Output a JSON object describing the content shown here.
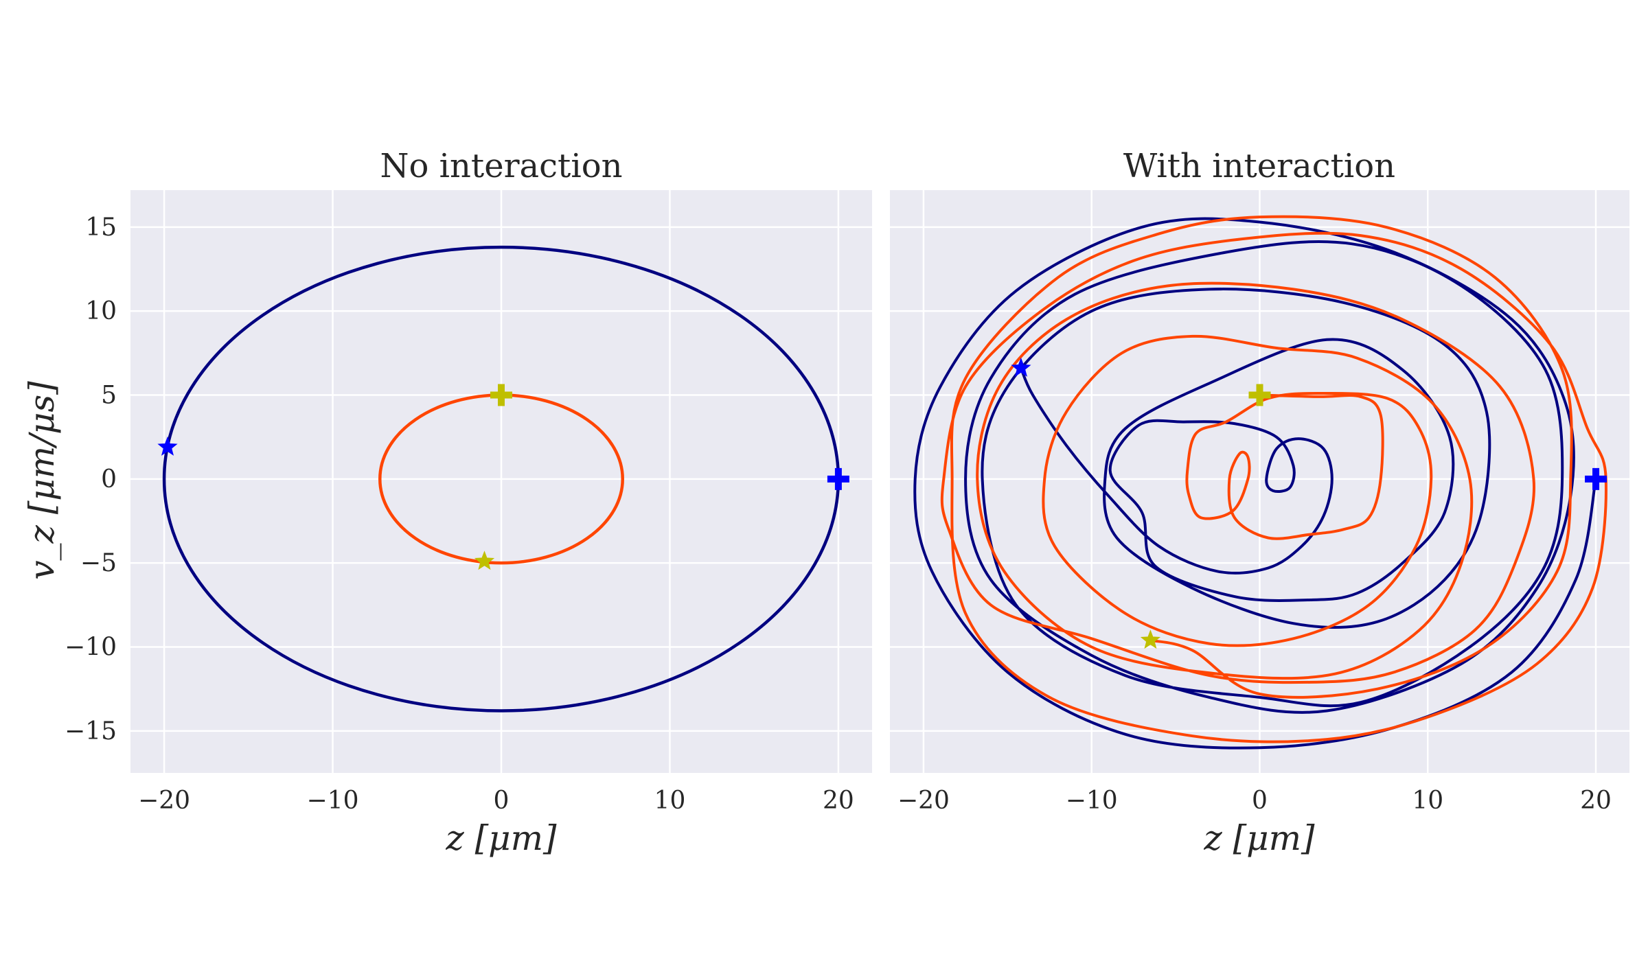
{
  "chart_data": [
    {
      "type": "line",
      "title": "No interaction",
      "xlabel": "z [μm]",
      "ylabel": "v_z [μm/μs]",
      "xlim": [
        -22,
        22
      ],
      "ylim": [
        -17.5,
        17.2
      ],
      "xticks": [
        -20,
        -10,
        0,
        10,
        20
      ],
      "xtick_labels": [
        "−20",
        "−10",
        "0",
        "10",
        "20"
      ],
      "yticks": [
        -15,
        -10,
        -5,
        0,
        5,
        10,
        15
      ],
      "ytick_labels": [
        "−15",
        "−10",
        "−5",
        "0",
        "5",
        "10",
        "15"
      ],
      "grid": true,
      "series": [
        {
          "color": "#000080",
          "shape": "ellipse",
          "center": [
            0,
            0
          ],
          "x_amplitude": 20,
          "y_amplitude": 13.8
        },
        {
          "color": "#ff4500",
          "shape": "ellipse",
          "center": [
            0,
            0
          ],
          "x_amplitude": 7.2,
          "y_amplitude": 5.0
        }
      ],
      "markers": [
        {
          "kind": "plus",
          "x": 20,
          "y": 0,
          "color": "#0000ff"
        },
        {
          "kind": "star",
          "x": -19.8,
          "y": 1.9,
          "color": "#0000ff"
        },
        {
          "kind": "plus",
          "x": 0,
          "y": 5,
          "color": "#bfbf00"
        },
        {
          "kind": "star",
          "x": -1.0,
          "y": -4.9,
          "color": "#bfbf00"
        }
      ]
    },
    {
      "type": "line",
      "title": "With interaction",
      "xlabel": "z [μm]",
      "ylabel": "",
      "xlim": [
        -22,
        22
      ],
      "ylim": [
        -17.5,
        17.2
      ],
      "xticks": [
        -20,
        -10,
        0,
        10,
        20
      ],
      "xtick_labels": [
        "−20",
        "−10",
        "0",
        "10",
        "20"
      ],
      "yticks": [
        -15,
        -10,
        -5,
        0,
        5,
        10,
        15
      ],
      "grid": true,
      "series": [
        {
          "color": "#000080",
          "shape": "decaying-spiral",
          "start": [
            20,
            0
          ],
          "end": [
            -14.2,
            6.6
          ],
          "points": [
            [
              20,
              0
            ],
            [
              18.8,
              -6
            ],
            [
              15,
              -11.5
            ],
            [
              8,
              -14.8
            ],
            [
              0,
              -16
            ],
            [
              -8,
              -15.2
            ],
            [
              -15,
              -11.5
            ],
            [
              -19.5,
              -5.5
            ],
            [
              -20.5,
              0
            ],
            [
              -19,
              5.5
            ],
            [
              -14.5,
              11.2
            ],
            [
              -7,
              15
            ],
            [
              0,
              15.3
            ],
            [
              8,
              13.5
            ],
            [
              15,
              9.5
            ],
            [
              18.2,
              4.5
            ],
            [
              18.5,
              -1
            ],
            [
              16.5,
              -6.5
            ],
            [
              12,
              -11
            ],
            [
              4,
              -13.8
            ],
            [
              -3,
              -13
            ],
            [
              -10,
              -10.5
            ],
            [
              -16,
              -6
            ],
            [
              -17.5,
              0
            ],
            [
              -16,
              6
            ],
            [
              -11,
              11
            ],
            [
              -2,
              13.5
            ],
            [
              5.5,
              14
            ],
            [
              12,
              11.5
            ],
            [
              17,
              6.5
            ],
            [
              18,
              0
            ],
            [
              16.8,
              -5.5
            ],
            [
              12.5,
              -10
            ],
            [
              6,
              -13.3
            ],
            [
              0,
              -13
            ],
            [
              -8,
              -11.7
            ],
            [
              -14.5,
              -7.5
            ],
            [
              -16.5,
              0
            ],
            [
              -15,
              5.5
            ],
            [
              -10,
              10
            ],
            [
              -3,
              11.3
            ],
            [
              5,
              10.5
            ],
            [
              11,
              8
            ],
            [
              13.5,
              4
            ],
            [
              13.2,
              -2
            ],
            [
              11,
              -6
            ],
            [
              7,
              -8.5
            ],
            [
              2,
              -8.6
            ],
            [
              -4,
              -6.5
            ],
            [
              -8.5,
              -3.5
            ],
            [
              -9.2,
              0
            ],
            [
              -8,
              3
            ],
            [
              -3,
              5.7
            ],
            [
              4,
              8.3
            ],
            [
              8.5,
              6.5
            ],
            [
              11.3,
              2.5
            ],
            [
              11,
              -2
            ],
            [
              8.5,
              -5
            ],
            [
              5.8,
              -6.8
            ],
            [
              3,
              -7.2
            ],
            [
              -1.5,
              -7
            ],
            [
              -6.2,
              -5.2
            ],
            [
              -7,
              -2
            ],
            [
              -8.9,
              0.5
            ],
            [
              -7.2,
              3.2
            ],
            [
              -4.5,
              3.4
            ],
            [
              -1.5,
              3.3
            ],
            [
              1,
              2.5
            ],
            [
              2,
              0.8
            ],
            [
              1.8,
              -0.5
            ],
            [
              0.8,
              -0.7
            ],
            [
              0.4,
              0
            ],
            [
              1,
              1.8
            ],
            [
              2.3,
              2.4
            ],
            [
              3.8,
              1.8
            ],
            [
              4.3,
              0
            ],
            [
              3.8,
              -2.2
            ],
            [
              2.5,
              -4
            ],
            [
              0.5,
              -5.3
            ],
            [
              -2.5,
              -5.5
            ],
            [
              -6,
              -4
            ],
            [
              -9,
              -1
            ],
            [
              -11.5,
              2
            ],
            [
              -13.5,
              5
            ],
            [
              -14.2,
              6.6
            ]
          ]
        },
        {
          "color": "#ff4500",
          "shape": "decaying-spiral",
          "start": [
            0,
            5
          ],
          "end": [
            -6.5,
            -9.6
          ],
          "points": [
            [
              0,
              5
            ],
            [
              3.5,
              4.9
            ],
            [
              6,
              4.9
            ],
            [
              7.2,
              3.8
            ],
            [
              7.2,
              0
            ],
            [
              6.5,
              -2.3
            ],
            [
              5,
              -3
            ],
            [
              3,
              -3.3
            ],
            [
              0.5,
              -3.5
            ],
            [
              -1.5,
              -2.3
            ],
            [
              -1.8,
              0
            ],
            [
              -1.2,
              1.5
            ],
            [
              -0.7,
              1.3
            ],
            [
              -0.7,
              0
            ],
            [
              -1.6,
              -1.9
            ],
            [
              -3.5,
              -2.3
            ],
            [
              -4.2,
              -1
            ],
            [
              -4.3,
              0.5
            ],
            [
              -3.8,
              2.7
            ],
            [
              -2,
              3.4
            ],
            [
              0.5,
              4.8
            ],
            [
              3.5,
              5.1
            ],
            [
              7.6,
              4.8
            ],
            [
              9.5,
              3
            ],
            [
              10.2,
              0
            ],
            [
              9.3,
              -4
            ],
            [
              6.5,
              -7.5
            ],
            [
              2,
              -9.5
            ],
            [
              -3,
              -9.8
            ],
            [
              -8,
              -8
            ],
            [
              -12.2,
              -4
            ],
            [
              -12.8,
              0
            ],
            [
              -11.5,
              4
            ],
            [
              -8.2,
              7.5
            ],
            [
              -4,
              8.5
            ],
            [
              1,
              7.8
            ],
            [
              5.8,
              7.2
            ],
            [
              10.3,
              4.5
            ],
            [
              12.5,
              0
            ],
            [
              12,
              -5
            ],
            [
              9.5,
              -9
            ],
            [
              4.5,
              -11.6
            ],
            [
              -2.5,
              -11.6
            ],
            [
              -10,
              -10
            ],
            [
              -15.2,
              -5.5
            ],
            [
              -16.8,
              0
            ],
            [
              -15.5,
              5.5
            ],
            [
              -11.5,
              9.5
            ],
            [
              -5.5,
              11.5
            ],
            [
              2,
              11.3
            ],
            [
              8.5,
              9.5
            ],
            [
              14.3,
              5.5
            ],
            [
              16.3,
              0
            ],
            [
              15.2,
              -5
            ],
            [
              12.8,
              -9
            ],
            [
              8,
              -11.5
            ],
            [
              3,
              -12.1
            ],
            [
              -3,
              -11.7
            ],
            [
              -10,
              -9.5
            ],
            [
              -16,
              -7.5
            ],
            [
              -18.5,
              -3
            ],
            [
              -18.8,
              0
            ],
            [
              -17.5,
              5.5
            ],
            [
              -13,
              10
            ],
            [
              -7.5,
              13
            ],
            [
              -1,
              14.3
            ],
            [
              6,
              14.5
            ],
            [
              12,
              12.5
            ],
            [
              17.3,
              8
            ],
            [
              19.5,
              3
            ],
            [
              20.6,
              0
            ],
            [
              19.8,
              -6.5
            ],
            [
              16.5,
              -11
            ],
            [
              10.5,
              -14
            ],
            [
              4,
              -15.5
            ],
            [
              -4,
              -15.3
            ],
            [
              -12.5,
              -13
            ],
            [
              -17.5,
              -8
            ],
            [
              -18.3,
              0
            ],
            [
              -17.5,
              6
            ],
            [
              -12,
              12
            ],
            [
              -6,
              14.6
            ],
            [
              0,
              15.6
            ],
            [
              7.5,
              15
            ],
            [
              14,
              12
            ],
            [
              18,
              6.5
            ],
            [
              18.5,
              0
            ],
            [
              17.7,
              -5.5
            ],
            [
              13.5,
              -10
            ],
            [
              7,
              -12.5
            ],
            [
              0,
              -12.8
            ],
            [
              -4,
              -10.2
            ],
            [
              -6.5,
              -9.6
            ]
          ]
        }
      ],
      "markers": [
        {
          "kind": "plus",
          "x": 20,
          "y": 0,
          "color": "#0000ff"
        },
        {
          "kind": "star",
          "x": -14.2,
          "y": 6.6,
          "color": "#0000ff"
        },
        {
          "kind": "plus",
          "x": 0,
          "y": 5,
          "color": "#bfbf00"
        },
        {
          "kind": "star",
          "x": -6.5,
          "y": -9.6,
          "color": "#bfbf00"
        }
      ]
    }
  ]
}
